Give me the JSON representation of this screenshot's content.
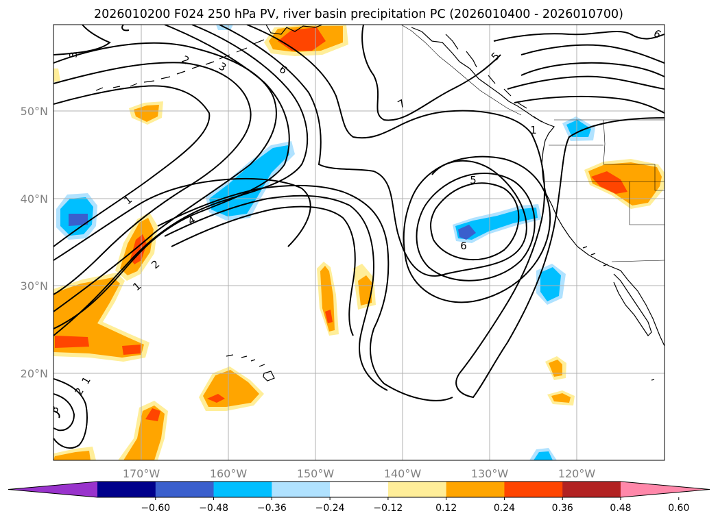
{
  "title": "2026010200 F024 250 hPa PV, river basin precipitation PC (2026010400 - 2026010700)",
  "longitude_labels": [
    "170°W",
    "160°W",
    "150°W",
    "140°W",
    "130°W",
    "120°W"
  ],
  "latitude_labels": [
    "50°N",
    "40°N",
    "30°N",
    "20°N"
  ],
  "colorbar": {
    "tick_labels": [
      "−0.60",
      "−0.48",
      "−0.36",
      "−0.24",
      "−0.12",
      "0.12",
      "0.24",
      "0.36",
      "0.48",
      "0.60"
    ],
    "colors": [
      "#9933cc",
      "#00008b",
      "#3a5fcd",
      "#00bfff",
      "#b0e2ff",
      "#ffffff",
      "#ffee99",
      "#ffa500",
      "#ff4500",
      "#b22222",
      "#ff88aa"
    ]
  },
  "pv_contour_labels": [
    "3",
    "2",
    "3",
    "6",
    "7",
    "5",
    "6",
    "1",
    "1",
    "4",
    "2",
    "1",
    "5",
    "6",
    "1",
    "2",
    "3"
  ],
  "precip_colors": {
    "neg_light": "#b0e2ff",
    "neg_mid": "#00bfff",
    "neg_dark": "#3a5fcd",
    "pos_light": "#ffee99",
    "pos_mid": "#ffa500",
    "pos_dark": "#ff4500"
  }
}
